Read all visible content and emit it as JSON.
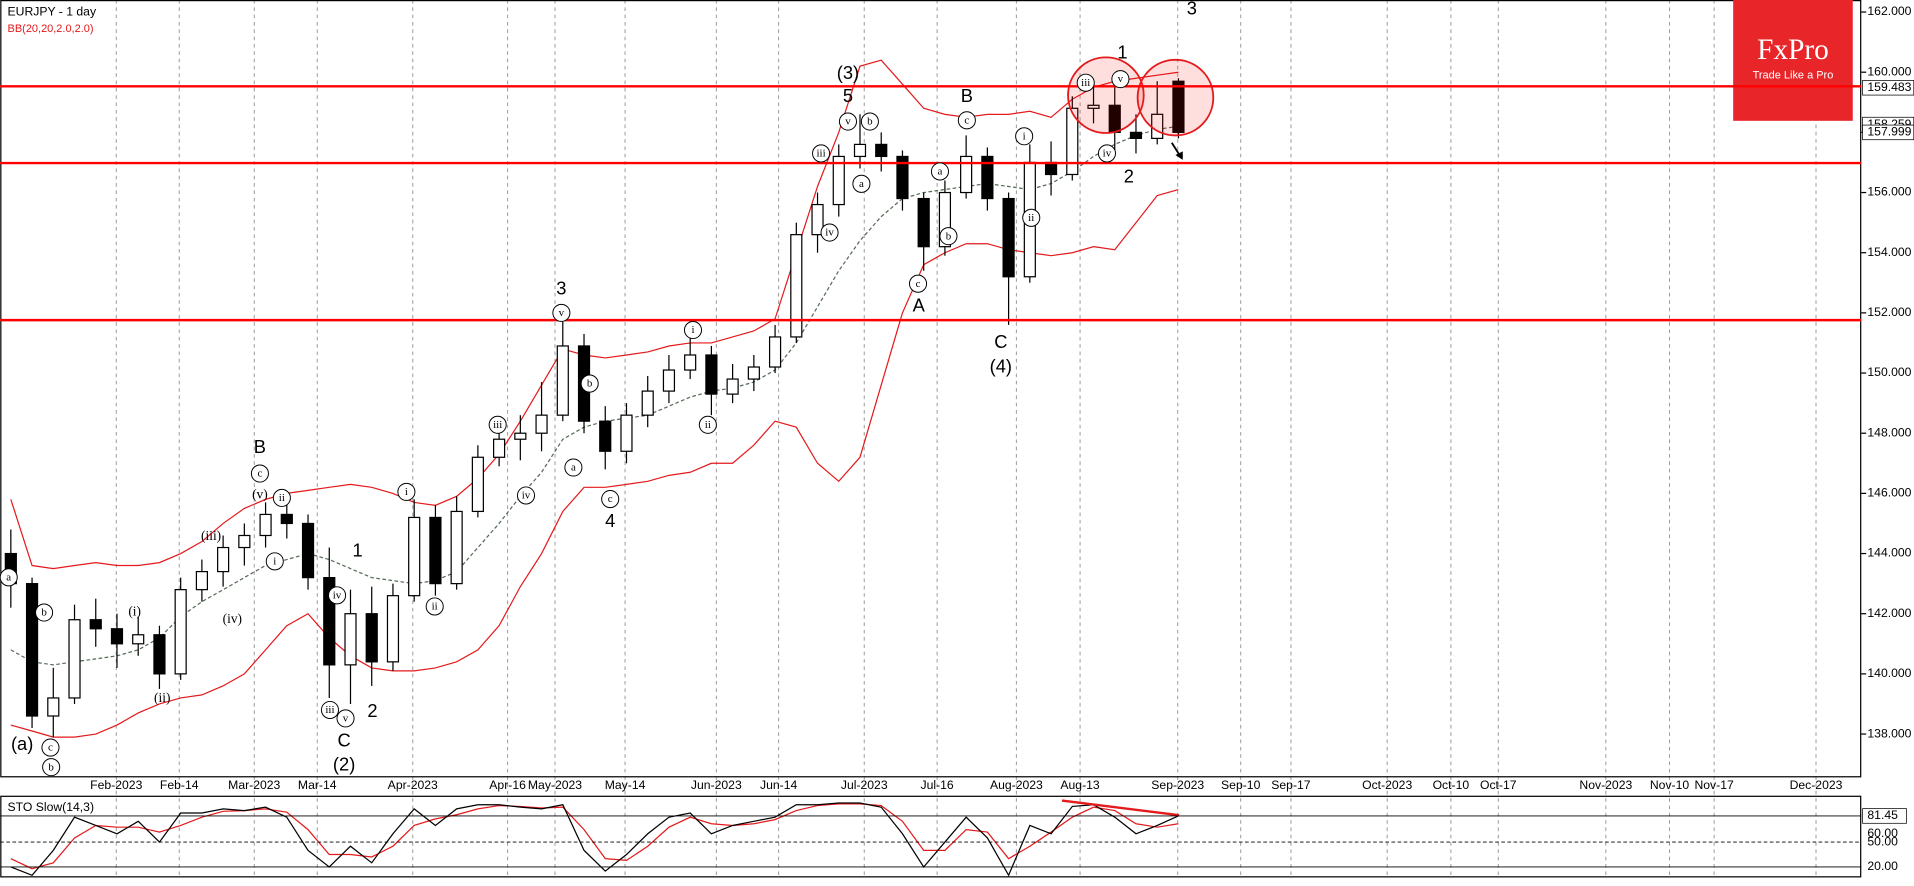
{
  "chart_data": {
    "type": "candlestick",
    "title": "EURJPY - 1 day",
    "indicator_label": "BB(20,20,2.0,2.0)",
    "indicator_color": "#e41a1c",
    "xlim": [
      0,
      263
    ],
    "xticks": [
      {
        "value": 16.4,
        "label": "Feb-2023"
      },
      {
        "value": 25.3,
        "label": "Feb-14"
      },
      {
        "value": 35.9,
        "label": "Mar-2023"
      },
      {
        "value": 44.8,
        "label": "Mar-14"
      },
      {
        "value": 58.3,
        "label": "Apr-2023"
      },
      {
        "value": 71.7,
        "label": "Apr-16"
      },
      {
        "value": 78.4,
        "label": "May-2023"
      },
      {
        "value": 88.3,
        "label": "May-14"
      },
      {
        "value": 101.2,
        "label": "Jun-2023"
      },
      {
        "value": 110,
        "label": "Jun-14"
      },
      {
        "value": 122.1,
        "label": "Jul-2023"
      },
      {
        "value": 132.4,
        "label": "Jul-16"
      },
      {
        "value": 143.6,
        "label": "Aug-2023"
      },
      {
        "value": 152.6,
        "label": "Aug-13"
      },
      {
        "value": 166.4,
        "label": "Sep-2023"
      },
      {
        "value": 175.3,
        "label": "Sep-10"
      },
      {
        "value": 182.4,
        "label": "Sep-17"
      },
      {
        "value": 196,
        "label": "Oct-2023"
      },
      {
        "value": 205,
        "label": "Oct-10"
      },
      {
        "value": 211.7,
        "label": "Oct-17"
      },
      {
        "value": 226.9,
        "label": "Nov-2023"
      },
      {
        "value": 235.9,
        "label": "Nov-10"
      },
      {
        "value": 242.2,
        "label": "Nov-17"
      },
      {
        "value": 256.6,
        "label": "Dec-2023"
      }
    ],
    "ylim": [
      136.6,
      162.4
    ],
    "yticks": [
      {
        "value": 138,
        "label": "138.000"
      },
      {
        "value": 140,
        "label": "140.000"
      },
      {
        "value": 142,
        "label": "142.000"
      },
      {
        "value": 144,
        "label": "144.000"
      },
      {
        "value": 146,
        "label": "146.000"
      },
      {
        "value": 148,
        "label": "148.000"
      },
      {
        "value": 150,
        "label": "150.000"
      },
      {
        "value": 152,
        "label": "152.000"
      },
      {
        "value": 154,
        "label": "154.000"
      },
      {
        "value": 156,
        "label": "156.000"
      },
      {
        "value": 158,
        "label": "158.000"
      },
      {
        "value": 160,
        "label": "160.000"
      },
      {
        "value": 162,
        "label": "162.000"
      }
    ],
    "grid": true,
    "price_tags": [
      {
        "value": 159.483,
        "label": "159.483"
      },
      {
        "value": 158.259,
        "label": "158.259"
      },
      {
        "value": 157.999,
        "label": "157.999"
      }
    ],
    "x": [
      1.5,
      4.5,
      7.5,
      10.5,
      13.5,
      16.5,
      19.5,
      22.5,
      25.5,
      28.5,
      31.5,
      34.5,
      37.5,
      40.5,
      43.5,
      46.5,
      49.5,
      52.5,
      55.5,
      58.5,
      61.5,
      64.5,
      67.5,
      70.5,
      73.5,
      76.5,
      79.5,
      82.5,
      85.5,
      88.5,
      91.5,
      94.5,
      97.5,
      100.5,
      103.5,
      106.5,
      109.5,
      112.5,
      115.5,
      118.5,
      121.5,
      124.5,
      127.5,
      130.5,
      133.5,
      136.5,
      139.5,
      142.5,
      145.5,
      148.5,
      151.5,
      154.5,
      157.5,
      160.5,
      163.5,
      166.5
    ],
    "ohlc": [
      [
        144.0,
        144.8,
        142.2,
        143.0
      ],
      [
        143.0,
        143.2,
        138.2,
        138.6
      ],
      [
        138.6,
        140.2,
        137.9,
        139.2
      ],
      [
        139.2,
        142.3,
        139.0,
        141.8
      ],
      [
        141.8,
        142.5,
        140.9,
        141.5
      ],
      [
        141.5,
        142.0,
        140.2,
        141.0
      ],
      [
        141.0,
        141.9,
        140.6,
        141.3
      ],
      [
        141.3,
        141.6,
        139.5,
        140.0
      ],
      [
        140.0,
        143.2,
        139.8,
        142.8
      ],
      [
        142.8,
        143.8,
        142.4,
        143.4
      ],
      [
        143.4,
        144.6,
        142.9,
        144.2
      ],
      [
        144.2,
        145.0,
        143.6,
        144.6
      ],
      [
        144.6,
        145.7,
        144.2,
        145.3
      ],
      [
        145.3,
        145.8,
        144.5,
        145.0
      ],
      [
        145.0,
        145.3,
        142.8,
        143.2
      ],
      [
        143.2,
        144.2,
        139.2,
        140.3
      ],
      [
        140.3,
        142.8,
        139.0,
        142.0
      ],
      [
        142.0,
        142.9,
        139.6,
        140.4
      ],
      [
        140.4,
        143.0,
        140.1,
        142.6
      ],
      [
        142.6,
        145.8,
        142.4,
        145.2
      ],
      [
        145.2,
        145.6,
        142.6,
        143.0
      ],
      [
        143.0,
        145.9,
        142.8,
        145.4
      ],
      [
        145.4,
        147.6,
        145.2,
        147.2
      ],
      [
        147.2,
        148.3,
        146.9,
        147.8
      ],
      [
        147.8,
        148.6,
        147.1,
        148.0
      ],
      [
        148.0,
        149.7,
        147.4,
        148.6
      ],
      [
        148.6,
        151.7,
        148.4,
        150.9
      ],
      [
        150.9,
        151.3,
        148.0,
        148.4
      ],
      [
        148.4,
        148.9,
        146.8,
        147.4
      ],
      [
        147.4,
        149.0,
        147.0,
        148.6
      ],
      [
        148.6,
        149.9,
        148.2,
        149.4
      ],
      [
        149.4,
        150.6,
        149.0,
        150.1
      ],
      [
        150.1,
        151.3,
        149.8,
        150.6
      ],
      [
        150.6,
        150.9,
        148.6,
        149.3
      ],
      [
        149.3,
        150.3,
        149.0,
        149.8
      ],
      [
        149.8,
        150.6,
        149.4,
        150.2
      ],
      [
        150.2,
        151.6,
        150.0,
        151.2
      ],
      [
        151.2,
        155.0,
        151.0,
        154.6
      ],
      [
        154.6,
        156.0,
        154.0,
        155.6
      ],
      [
        155.6,
        157.6,
        155.2,
        157.2
      ],
      [
        157.2,
        158.6,
        156.8,
        157.6
      ],
      [
        157.6,
        158.0,
        156.7,
        157.2
      ],
      [
        157.2,
        157.4,
        155.4,
        155.8
      ],
      [
        155.8,
        156.0,
        153.4,
        154.2
      ],
      [
        154.2,
        156.4,
        153.9,
        156.0
      ],
      [
        156.0,
        157.9,
        155.8,
        157.2
      ],
      [
        157.2,
        157.5,
        155.4,
        155.8
      ],
      [
        155.8,
        156.0,
        151.6,
        153.2
      ],
      [
        153.2,
        157.6,
        153.0,
        157.0
      ],
      [
        157.0,
        157.7,
        155.9,
        156.6
      ],
      [
        156.6,
        159.2,
        156.4,
        158.8
      ],
      [
        158.8,
        159.5,
        158.3,
        158.9
      ],
      [
        158.9,
        159.6,
        157.3,
        158.0
      ],
      [
        158.0,
        158.6,
        157.3,
        157.8
      ],
      [
        157.8,
        159.7,
        157.6,
        158.6
      ],
      [
        159.7,
        159.8,
        157.8,
        158.0
      ]
    ],
    "bb_upper": [
      145.8,
      143.6,
      143.5,
      143.6,
      143.7,
      143.6,
      143.6,
      143.7,
      144.0,
      144.4,
      145.0,
      145.5,
      145.8,
      146.0,
      146.1,
      146.2,
      146.3,
      146.2,
      146.0,
      145.7,
      145.6,
      145.9,
      146.5,
      147.3,
      148.4,
      149.6,
      150.8,
      150.6,
      150.5,
      150.6,
      150.7,
      150.9,
      151.0,
      151.0,
      151.2,
      151.4,
      151.8,
      154.0,
      156.2,
      158.0,
      160.2,
      160.4,
      159.6,
      158.8,
      158.6,
      158.5,
      158.6,
      158.6,
      158.7,
      158.5,
      159.1,
      159.5,
      159.7,
      159.8,
      159.9,
      160.0
    ],
    "bb_middle": [
      140.8,
      140.4,
      140.3,
      140.4,
      140.5,
      140.6,
      140.8,
      141.2,
      141.9,
      142.4,
      142.8,
      143.2,
      143.6,
      143.8,
      144.0,
      143.8,
      143.5,
      143.2,
      143.1,
      143.0,
      143.1,
      143.4,
      144.2,
      145.0,
      145.9,
      146.7,
      147.8,
      148.2,
      148.4,
      148.5,
      148.6,
      148.9,
      149.2,
      149.4,
      149.5,
      149.7,
      150.1,
      151.0,
      152.2,
      153.4,
      154.4,
      155.2,
      155.8,
      156.0,
      156.1,
      156.2,
      156.3,
      156.2,
      156.1,
      156.3,
      156.7,
      157.2,
      157.6,
      157.9,
      158.1,
      158.2
    ],
    "bb_lower": [
      138.3,
      138.1,
      137.9,
      137.9,
      138.0,
      138.3,
      138.7,
      139.0,
      139.2,
      139.3,
      139.6,
      140.0,
      140.8,
      141.6,
      142.0,
      141.2,
      140.6,
      140.2,
      140.1,
      140.1,
      140.2,
      140.4,
      140.8,
      141.6,
      142.9,
      144.0,
      145.4,
      146.2,
      146.2,
      146.3,
      146.4,
      146.6,
      146.7,
      147.0,
      147.0,
      147.6,
      148.4,
      148.2,
      147.0,
      146.4,
      147.2,
      149.6,
      152.0,
      153.6,
      154.0,
      154.3,
      154.3,
      154.1,
      154.0,
      153.9,
      154.0,
      154.2,
      154.1,
      155.0,
      155.9,
      156.1
    ],
    "levels": {
      "values": [
        159.53,
        156.98,
        151.76
      ],
      "color": "#ff0000"
    },
    "annotations": [
      {
        "text": "a",
        "x": 1.2,
        "y": 143.21,
        "circled": true
      },
      {
        "text": "b",
        "x": 6.2,
        "y": 142.04,
        "circled": true
      },
      {
        "text": "(a)",
        "x": 3.1,
        "y": 137.63
      },
      {
        "text": "c",
        "x": 7.1,
        "y": 137.55,
        "circled": true
      },
      {
        "text": "b",
        "x": 7.2,
        "y": 136.9,
        "circled": true
      },
      {
        "text": "(i)",
        "x": 19.0,
        "y": 142.04
      },
      {
        "text": "(ii)",
        "x": 22.9,
        "y": 139.17
      },
      {
        "text": "(iii)",
        "x": 29.8,
        "y": 144.55
      },
      {
        "text": "(iv)",
        "x": 32.8,
        "y": 141.8
      },
      {
        "text": "B",
        "x": 36.7,
        "y": 147.51
      },
      {
        "text": "c",
        "x": 36.7,
        "y": 146.66,
        "circled": true
      },
      {
        "text": "(v)",
        "x": 36.7,
        "y": 145.93
      },
      {
        "text": "ii",
        "x": 39.8,
        "y": 145.85,
        "circled": true
      },
      {
        "text": "i",
        "x": 38.8,
        "y": 143.74,
        "circled": true
      },
      {
        "text": "1",
        "x": 50.5,
        "y": 144.06
      },
      {
        "text": "iv",
        "x": 47.6,
        "y": 142.61,
        "circled": true
      },
      {
        "text": "iii",
        "x": 46.6,
        "y": 138.8,
        "circled": true
      },
      {
        "text": "v",
        "x": 48.8,
        "y": 138.52,
        "circled": true
      },
      {
        "text": "C",
        "x": 48.6,
        "y": 137.75
      },
      {
        "text": "(2)",
        "x": 48.6,
        "y": 136.94
      },
      {
        "text": "2",
        "x": 52.6,
        "y": 138.72
      },
      {
        "text": "i",
        "x": 57.4,
        "y": 146.05,
        "circled": true
      },
      {
        "text": "ii",
        "x": 61.4,
        "y": 142.24,
        "circled": true
      },
      {
        "text": "iii",
        "x": 70.3,
        "y": 148.28,
        "circled": true
      },
      {
        "text": "iv",
        "x": 74.3,
        "y": 145.93,
        "circled": true
      },
      {
        "text": "3",
        "x": 79.3,
        "y": 152.77
      },
      {
        "text": "v",
        "x": 79.3,
        "y": 152.0,
        "circled": true
      },
      {
        "text": "b",
        "x": 83.3,
        "y": 149.65,
        "circled": true
      },
      {
        "text": "a",
        "x": 81.0,
        "y": 146.86,
        "circled": true
      },
      {
        "text": "c",
        "x": 86.2,
        "y": 145.81,
        "circled": true
      },
      {
        "text": "4",
        "x": 86.2,
        "y": 145.04
      },
      {
        "text": "i",
        "x": 97.9,
        "y": 151.43,
        "circled": true
      },
      {
        "text": "ii",
        "x": 100.0,
        "y": 148.28,
        "circled": true
      },
      {
        "text": "(3)",
        "x": 119.8,
        "y": 159.94
      },
      {
        "text": "5",
        "x": 119.8,
        "y": 159.17
      },
      {
        "text": "v",
        "x": 119.8,
        "y": 158.36,
        "circled": true
      },
      {
        "text": "b",
        "x": 122.9,
        "y": 158.36,
        "circled": true
      },
      {
        "text": "iii",
        "x": 116.0,
        "y": 157.3,
        "circled": true
      },
      {
        "text": "a",
        "x": 121.7,
        "y": 156.29,
        "circled": true
      },
      {
        "text": "iv",
        "x": 117.2,
        "y": 154.67,
        "circled": true
      },
      {
        "text": "B",
        "x": 136.6,
        "y": 159.17
      },
      {
        "text": "c",
        "x": 136.6,
        "y": 158.4,
        "circled": true
      },
      {
        "text": "a",
        "x": 132.8,
        "y": 156.7,
        "circled": true
      },
      {
        "text": "b",
        "x": 134.0,
        "y": 154.55,
        "circled": true
      },
      {
        "text": "c",
        "x": 129.7,
        "y": 152.97,
        "circled": true
      },
      {
        "text": "A",
        "x": 129.8,
        "y": 152.2
      },
      {
        "text": "i",
        "x": 144.7,
        "y": 157.87,
        "circled": true
      },
      {
        "text": "ii",
        "x": 145.7,
        "y": 155.16,
        "circled": true
      },
      {
        "text": "C",
        "x": 141.4,
        "y": 150.99
      },
      {
        "text": "(4)",
        "x": 141.4,
        "y": 150.18
      },
      {
        "text": "iii",
        "x": 153.4,
        "y": 159.65,
        "circled": true
      },
      {
        "text": "v",
        "x": 158.3,
        "y": 159.77,
        "circled": true
      },
      {
        "text": "1",
        "x": 158.6,
        "y": 160.62
      },
      {
        "text": "iv",
        "x": 156.4,
        "y": 157.3,
        "circled": true
      },
      {
        "text": "2",
        "x": 159.5,
        "y": 156.49
      },
      {
        "text": "3",
        "x": 168.4,
        "y": 162.08
      }
    ],
    "stochastic": {
      "title": "STO Slow(14,3)",
      "ylim": [
        0,
        100
      ],
      "yticks": [
        {
          "value": 20,
          "label": "20.00"
        },
        {
          "value": 50,
          "label": "50.00"
        },
        {
          "value": 60,
          "label": "60.00"
        }
      ],
      "tags": [
        {
          "value": 81.45,
          "label": "81.45"
        }
      ],
      "k_color": "#000000",
      "d_color": "#e41a1c",
      "k": [
        20,
        10,
        40,
        80,
        70,
        60,
        75,
        50,
        85,
        85,
        90,
        88,
        92,
        80,
        40,
        20,
        45,
        25,
        60,
        90,
        70,
        90,
        95,
        95,
        92,
        90,
        95,
        40,
        15,
        35,
        60,
        80,
        85,
        60,
        70,
        75,
        80,
        95,
        95,
        97,
        97,
        92,
        60,
        20,
        50,
        80,
        55,
        10,
        70,
        60,
        93,
        95,
        80,
        60,
        70,
        81.45
      ],
      "d": [
        30,
        18,
        25,
        55,
        70,
        68,
        68,
        62,
        70,
        80,
        87,
        88,
        90,
        86,
        65,
        35,
        35,
        32,
        45,
        70,
        78,
        83,
        90,
        94,
        93,
        91,
        92,
        65,
        30,
        28,
        45,
        68,
        80,
        72,
        70,
        72,
        77,
        88,
        94,
        96,
        96,
        94,
        75,
        40,
        40,
        65,
        62,
        30,
        45,
        62,
        80,
        92,
        88,
        72,
        68,
        72
      ]
    },
    "logo": {
      "title": "FxPro",
      "tagline": "Trade Like a Pro",
      "color": "#e8262a"
    }
  }
}
